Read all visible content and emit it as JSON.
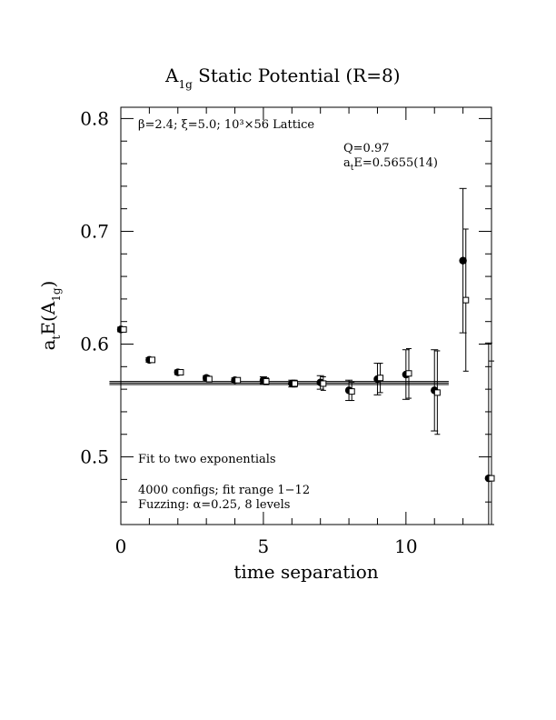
{
  "chart_data": {
    "type": "scatter",
    "title": {
      "main": "A",
      "sub": "1g",
      "rest": " Static Potential (R=8)"
    },
    "xlabel": "time separation",
    "ylabel": {
      "prefix": "a",
      "sub1": "t",
      "middle": "E(A",
      "sub2": "1g",
      "suffix": ")"
    },
    "xlim": [
      0,
      13
    ],
    "ylim": [
      0.44,
      0.81
    ],
    "x_major_ticks": [
      0,
      5,
      10
    ],
    "x_major_tick_labels": [
      "0",
      "5",
      "10"
    ],
    "y_major_ticks": [
      0.5,
      0.6,
      0.7,
      0.8
    ],
    "y_major_tick_labels": [
      "0.5",
      "0.6",
      "0.7",
      "0.8"
    ],
    "series": [
      {
        "marker": "filled-circle",
        "points": [
          {
            "x": 0,
            "y": 0.613,
            "err": 0.002
          },
          {
            "x": 1,
            "y": 0.586,
            "err": 0.002
          },
          {
            "x": 2,
            "y": 0.575,
            "err": 0.002
          },
          {
            "x": 3,
            "y": 0.57,
            "err": 0.002
          },
          {
            "x": 4,
            "y": 0.568,
            "err": 0.002
          },
          {
            "x": 5,
            "y": 0.568,
            "err": 0.003
          },
          {
            "x": 6,
            "y": 0.565,
            "err": 0.003
          },
          {
            "x": 7,
            "y": 0.566,
            "err": 0.006
          },
          {
            "x": 8,
            "y": 0.559,
            "err": 0.009
          },
          {
            "x": 9,
            "y": 0.569,
            "err": 0.014
          },
          {
            "x": 10,
            "y": 0.573,
            "err": 0.022
          },
          {
            "x": 11,
            "y": 0.559,
            "err": 0.036
          },
          {
            "x": 12,
            "y": 0.674,
            "err": 0.064
          },
          {
            "x": 12.9,
            "y": 0.481,
            "err": 0.12
          }
        ]
      },
      {
        "marker": "open-square",
        "points": [
          {
            "x": 0.1,
            "y": 0.613,
            "err": 0.002
          },
          {
            "x": 1.1,
            "y": 0.586,
            "err": 0.002
          },
          {
            "x": 2.1,
            "y": 0.575,
            "err": 0.002
          },
          {
            "x": 3.1,
            "y": 0.569,
            "err": 0.002
          },
          {
            "x": 4.1,
            "y": 0.568,
            "err": 0.002
          },
          {
            "x": 5.1,
            "y": 0.567,
            "err": 0.003
          },
          {
            "x": 6.1,
            "y": 0.565,
            "err": 0.003
          },
          {
            "x": 7.1,
            "y": 0.565,
            "err": 0.006
          },
          {
            "x": 8.1,
            "y": 0.558,
            "err": 0.008
          },
          {
            "x": 9.1,
            "y": 0.57,
            "err": 0.013
          },
          {
            "x": 10.1,
            "y": 0.574,
            "err": 0.022
          },
          {
            "x": 11.1,
            "y": 0.557,
            "err": 0.037
          },
          {
            "x": 12.1,
            "y": 0.639,
            "err": 0.063
          },
          {
            "x": 13.0,
            "y": 0.481,
            "err": 0.104
          }
        ]
      }
    ],
    "fit": {
      "x_start": -0.4,
      "x_end": 11.5,
      "central": 0.5655,
      "error": 0.0014
    },
    "annotations": {
      "lattice": "β=2.4; ξ=5.0; 10³×56 Lattice",
      "q_value": "Q=0.97",
      "energy_prefix": "a",
      "energy_sub": "t",
      "energy_rest": "E=0.5655(14)",
      "fit_label": "Fit to two exponentials",
      "configs": "4000 configs; fit range 1−12",
      "fuzzing": "Fuzzing: α=0.25, 8 levels"
    }
  }
}
